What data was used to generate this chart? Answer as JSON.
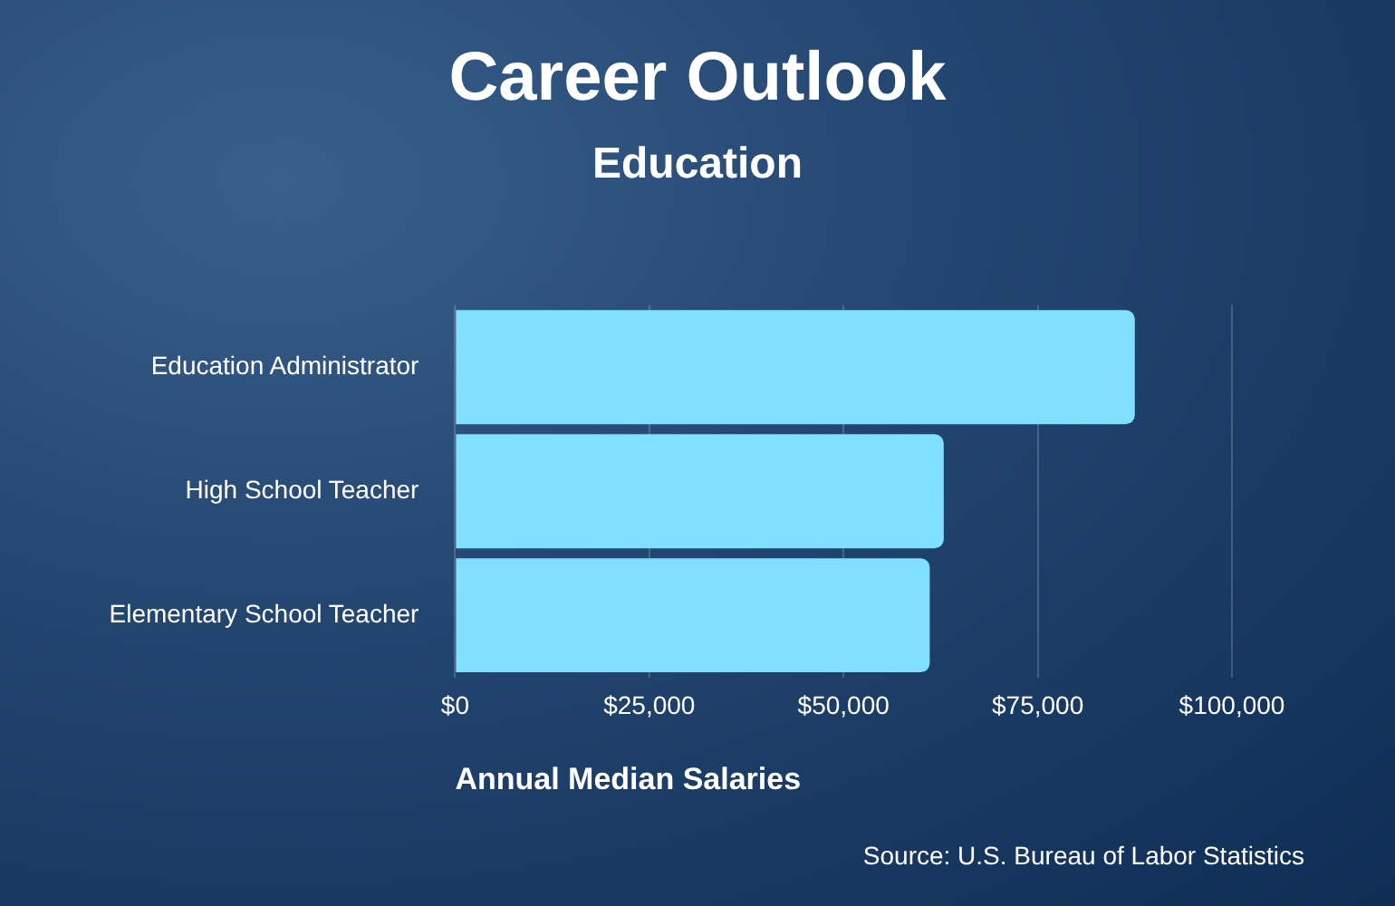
{
  "chart_data": {
    "type": "bar",
    "title": "Career Outlook",
    "subtitle": "Education",
    "xlabel": "Annual Median Salaries",
    "orientation": "horizontal",
    "categories": [
      "Education Administrator",
      "High School Teacher",
      "Elementary School Teacher"
    ],
    "values": [
      87500,
      62900,
      61100
    ],
    "color": "#80dfff",
    "xlim": [
      0,
      100000
    ],
    "xticks": [
      {
        "value": 0,
        "label": "$0"
      },
      {
        "value": 25000,
        "label": "$25,000"
      },
      {
        "value": 50000,
        "label": "$50,000"
      },
      {
        "value": 75000,
        "label": "$75,000"
      },
      {
        "value": 100000,
        "label": "$100,000"
      }
    ],
    "grid": "x",
    "annotations": [
      "Source: U.S. Bureau of Labor Statistics"
    ]
  }
}
